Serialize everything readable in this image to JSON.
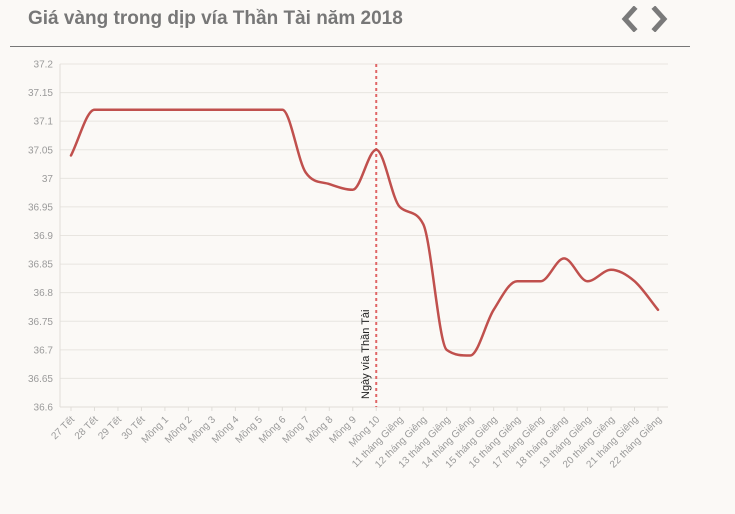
{
  "header": {
    "title": "Giá vàng trong dịp vía Thần Tài năm 2018",
    "prev_icon": "chevron-left-icon",
    "next_icon": "chevron-right-icon"
  },
  "chart_data": {
    "type": "line",
    "title": "Giá vàng trong dịp vía Thần Tài năm 2018",
    "xlabel": "",
    "ylabel": "",
    "ylim": [
      36.6,
      37.2
    ],
    "yticks": [
      "36.6",
      "36.65",
      "36.7",
      "36.75",
      "36.8",
      "36.85",
      "36.9",
      "36.95",
      "37",
      "37.05",
      "37.1",
      "37.15",
      "37.2"
    ],
    "grid": true,
    "legend": "none",
    "categories": [
      "27 Tết",
      "28 Tết",
      "29 Tết",
      "30 Tết",
      "Mồng 1",
      "Mồng 2",
      "Mồng 3",
      "Mồng 4",
      "Mồng 5",
      "Mồng 6",
      "Mồng 7",
      "Mồng 8",
      "Mồng 9",
      "Mồng 10",
      "11 tháng Giêng",
      "12 tháng Giêng",
      "13 tháng Giêng",
      "14 tháng Giêng",
      "15 tháng Giêng",
      "16 tháng Giêng",
      "17 tháng Giêng",
      "18 tháng Giêng",
      "19 tháng Giêng",
      "20 tháng Giêng",
      "21 tháng Giêng",
      "22 tháng Giêng"
    ],
    "series": [
      {
        "values": [
          37.04,
          37.12,
          37.12,
          37.12,
          37.12,
          37.12,
          37.12,
          37.12,
          37.12,
          37.12,
          37.01,
          36.99,
          36.98,
          37.05,
          36.95,
          36.92,
          36.7,
          36.69,
          36.77,
          36.82,
          36.82,
          36.86,
          36.82,
          36.84,
          36.82,
          36.77
        ],
        "color": "#c0504d"
      }
    ],
    "annotation": {
      "category": "Mồng 10",
      "label": "Ngày vía Thần Tài",
      "color": "#e06666"
    }
  }
}
